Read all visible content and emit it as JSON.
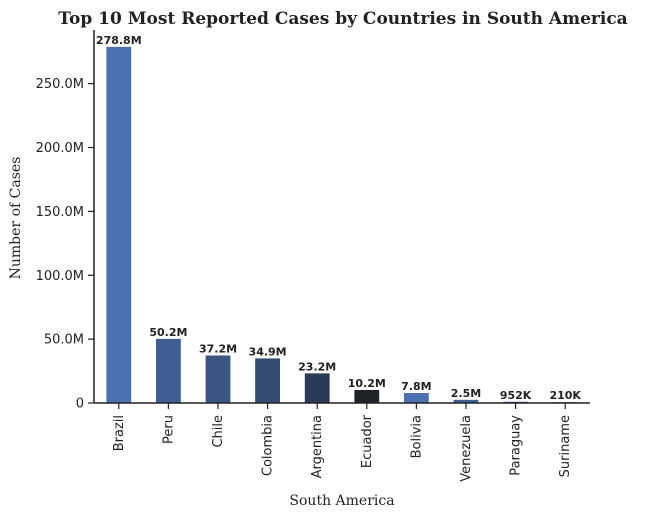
{
  "chart_data": {
    "type": "bar",
    "title": "Top 10 Most Reported Cases by Countries in South America",
    "xlabel": "South America",
    "ylabel": "Number of Cases",
    "categories": [
      "Brazil",
      "Peru",
      "Chile",
      "Colombia",
      "Argentina",
      "Ecuador",
      "Bolivia",
      "Venezuela",
      "Paraguay",
      "Suriname"
    ],
    "values": [
      278800000,
      50200000,
      37200000,
      34900000,
      23200000,
      10200000,
      7800000,
      2500000,
      952000,
      210000
    ],
    "value_labels": [
      "278.8M",
      "50.2M",
      "37.2M",
      "34.9M",
      "23.2M",
      "10.2M",
      "7.8M",
      "2.5M",
      "952K",
      "210K"
    ],
    "colors": [
      "#4a72b0",
      "#3f5f94",
      "#3b5682",
      "#344a70",
      "#2b3a55",
      "#1f2227",
      "#4a72b0",
      "#3f5f94",
      "#3b5682",
      "#344a70"
    ],
    "ylim": [
      0,
      292000000
    ],
    "yticks": [
      0,
      50000000,
      100000000,
      150000000,
      200000000,
      250000000
    ],
    "ytick_labels": [
      "0",
      "50.0M",
      "100.0M",
      "150.0M",
      "200.0M",
      "250.0M"
    ],
    "grid": false,
    "legend": "none"
  }
}
